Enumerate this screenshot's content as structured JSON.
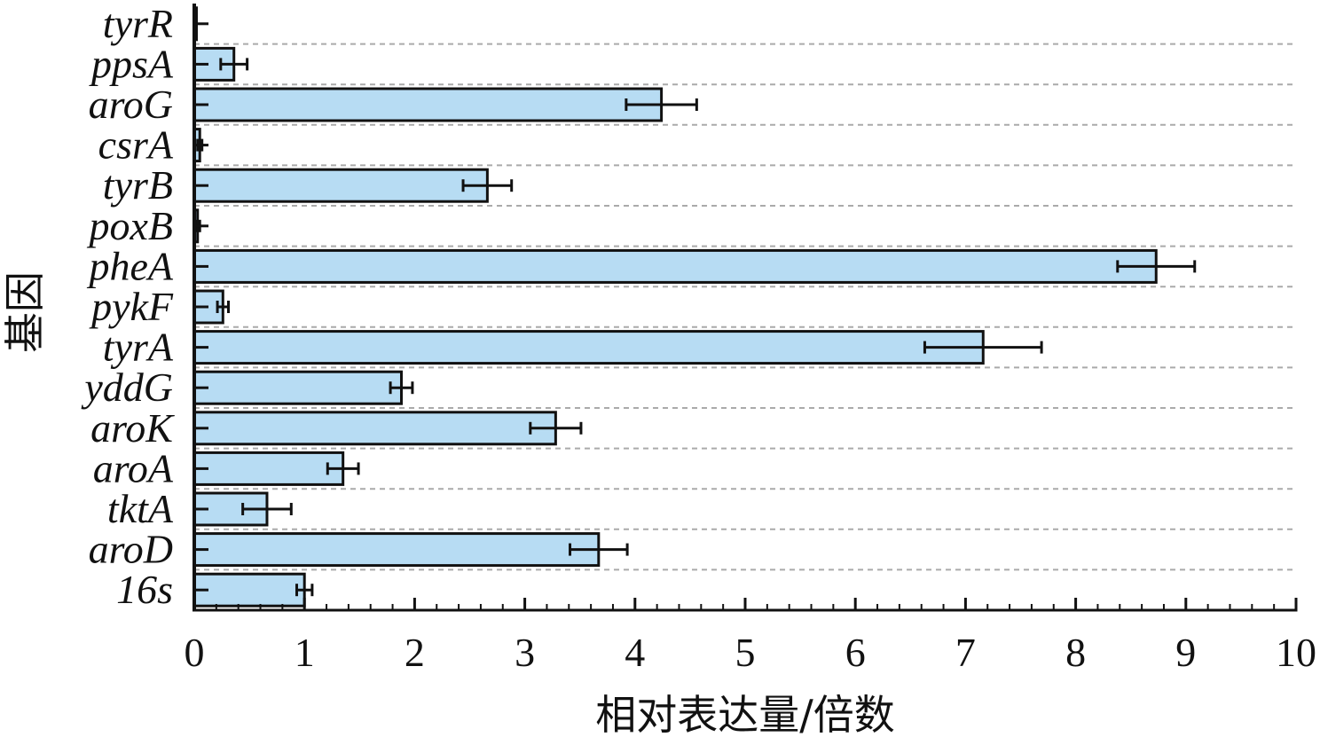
{
  "chart_data": {
    "type": "bar",
    "orientation": "horizontal",
    "title": "",
    "xlabel": "相对表达量/倍数",
    "ylabel": "基因",
    "xlim": [
      0,
      10
    ],
    "x_ticks": [
      "0",
      "1",
      "2",
      "3",
      "4",
      "5",
      "6",
      "7",
      "8",
      "9",
      "10"
    ],
    "grid": "horizontal dashed",
    "legend": "none",
    "bar_color": "#b7dcf3",
    "bar_edge_color": "#111111",
    "grid_color": "#aaaaaa",
    "categories": [
      "tyrR",
      "ppsA",
      "aroG",
      "csrA",
      "tyrB",
      "poxB",
      "pheA",
      "pykF",
      "tyrA",
      "yddG",
      "aroK",
      "aroA",
      "tktA",
      "aroD",
      "16s"
    ],
    "values": [
      0.02,
      0.36,
      4.24,
      0.05,
      2.66,
      0.03,
      8.73,
      0.26,
      7.16,
      1.88,
      3.28,
      1.35,
      0.66,
      3.67,
      1.0
    ],
    "errors": [
      0.0,
      0.12,
      0.32,
      0.02,
      0.22,
      0.02,
      0.35,
      0.05,
      0.53,
      0.1,
      0.23,
      0.14,
      0.22,
      0.26,
      0.07
    ]
  }
}
